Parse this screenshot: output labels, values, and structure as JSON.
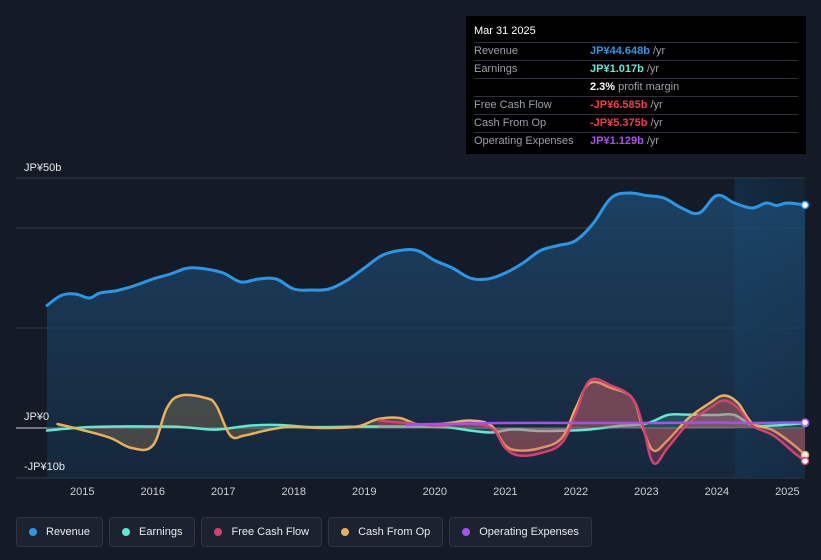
{
  "tooltip": {
    "date": "Mar 31 2025",
    "rows": [
      {
        "label": "Revenue",
        "value": "JP¥44.648b",
        "unit": "/yr",
        "color": "#2b96e6"
      },
      {
        "label": "Earnings",
        "value": "JP¥1.017b",
        "unit": "/yr",
        "color": "#5ee9d2"
      },
      {
        "label": "",
        "value": "2.3%",
        "unit": "profit margin",
        "color": "#ffffff"
      },
      {
        "label": "Free Cash Flow",
        "value": "-JP¥6.585b",
        "unit": "/yr",
        "color": "#ee3b4d"
      },
      {
        "label": "Cash From Op",
        "value": "-JP¥5.375b",
        "unit": "/yr",
        "color": "#ee3b4d"
      },
      {
        "label": "Operating Expenses",
        "value": "JP¥1.129b",
        "unit": "/yr",
        "color": "#a94ef2"
      }
    ]
  },
  "legend": [
    {
      "label": "Revenue",
      "color": "#2b96e6"
    },
    {
      "label": "Earnings",
      "color": "#5ee9d2"
    },
    {
      "label": "Free Cash Flow",
      "color": "#d3426f"
    },
    {
      "label": "Cash From Op",
      "color": "#e9b05c"
    },
    {
      "label": "Operating Expenses",
      "color": "#a94ef2"
    }
  ],
  "chart_data": {
    "type": "line",
    "ylim": [
      -10,
      50
    ],
    "y_tick_labels": [
      {
        "value": 50,
        "label": "JP¥50b"
      },
      {
        "value": 0,
        "label": "JP¥0"
      },
      {
        "value": -10,
        "label": "-JP¥10b"
      }
    ],
    "xlim": [
      2014.4,
      2025.3
    ],
    "x_ticks": [
      2015,
      2016,
      2017,
      2018,
      2019,
      2020,
      2021,
      2022,
      2023,
      2024,
      2025
    ],
    "x_tick_labels": [
      "2015",
      "2016",
      "2017",
      "2018",
      "2019",
      "2020",
      "2021",
      "2022",
      "2023",
      "2024",
      "2025"
    ],
    "highlight_from": 2024.25,
    "series": [
      {
        "name": "Revenue",
        "color": "#2b96e6",
        "fill": true,
        "x": [
          2014.5,
          2014.7,
          2014.9,
          2015.1,
          2015.25,
          2015.5,
          2015.75,
          2016.0,
          2016.25,
          2016.5,
          2016.75,
          2017.0,
          2017.25,
          2017.5,
          2017.75,
          2018.0,
          2018.25,
          2018.5,
          2018.75,
          2019.0,
          2019.25,
          2019.5,
          2019.75,
          2020.0,
          2020.25,
          2020.5,
          2020.75,
          2021.0,
          2021.25,
          2021.5,
          2021.75,
          2022.0,
          2022.25,
          2022.5,
          2022.75,
          2023.0,
          2023.25,
          2023.5,
          2023.75,
          2024.0,
          2024.25,
          2024.5,
          2024.7,
          2024.85,
          2025.0,
          2025.25
        ],
        "values": [
          24.5,
          26.5,
          26.8,
          26.0,
          27.0,
          27.5,
          28.5,
          29.8,
          30.8,
          32.0,
          31.8,
          31.0,
          29.2,
          29.8,
          29.8,
          27.8,
          27.6,
          27.8,
          29.5,
          32.0,
          34.5,
          35.5,
          35.5,
          33.5,
          32.0,
          30.0,
          29.8,
          31.0,
          33.0,
          35.5,
          36.5,
          37.5,
          41.0,
          46.0,
          47.0,
          46.5,
          46.0,
          44.0,
          43.0,
          46.5,
          45.0,
          44.0,
          45.0,
          44.5,
          45.0,
          44.6
        ]
      },
      {
        "name": "Earnings",
        "color": "#5ee9d2",
        "fill": true,
        "x": [
          2014.5,
          2015.0,
          2015.5,
          2016.0,
          2016.4,
          2016.8,
          2017.0,
          2017.4,
          2017.8,
          2018.2,
          2018.6,
          2019.0,
          2019.4,
          2019.8,
          2020.2,
          2020.5,
          2020.8,
          2021.1,
          2021.5,
          2021.9,
          2022.2,
          2022.6,
          2023.0,
          2023.3,
          2023.5,
          2023.8,
          2024.0,
          2024.25,
          2024.5,
          2024.8,
          2025.0,
          2025.25
        ],
        "values": [
          -0.5,
          0.1,
          0.3,
          0.3,
          0.2,
          -0.3,
          -0.2,
          0.5,
          0.6,
          0.2,
          0.2,
          0.3,
          0.3,
          0.3,
          0.1,
          -0.5,
          -0.9,
          -0.3,
          -0.6,
          -0.5,
          -0.3,
          0.4,
          0.9,
          2.6,
          2.7,
          2.6,
          2.6,
          2.6,
          0.6,
          0.5,
          0.7,
          1.0
        ]
      },
      {
        "name": "Cash From Op",
        "color": "#e9b05c",
        "fill": true,
        "x": [
          2014.65,
          2015.0,
          2015.4,
          2015.7,
          2016.0,
          2016.2,
          2016.4,
          2016.75,
          2016.9,
          2017.1,
          2017.3,
          2017.6,
          2017.9,
          2018.2,
          2018.5,
          2018.9,
          2019.2,
          2019.5,
          2019.8,
          2020.2,
          2020.5,
          2020.8,
          2021.0,
          2021.2,
          2021.5,
          2021.8,
          2022.0,
          2022.2,
          2022.5,
          2022.8,
          2022.95,
          2023.1,
          2023.3,
          2023.6,
          2023.9,
          2024.1,
          2024.3,
          2024.5,
          2024.8,
          2025.1,
          2025.25
        ],
        "values": [
          0.8,
          -0.4,
          -2.0,
          -4.0,
          -3.5,
          4.0,
          6.5,
          6.0,
          4.5,
          -1.5,
          -1.5,
          -0.5,
          0.2,
          0.1,
          0.0,
          0.3,
          1.8,
          2.0,
          0.6,
          1.0,
          1.5,
          0.5,
          -3.5,
          -4.5,
          -4.0,
          -2.0,
          4.0,
          9.0,
          8.0,
          6.0,
          0.0,
          -4.5,
          -2.5,
          2.0,
          5.0,
          6.5,
          5.0,
          1.0,
          -0.5,
          -3.5,
          -5.4
        ]
      },
      {
        "name": "Free Cash Flow",
        "color": "#d3426f",
        "fill": true,
        "x": [
          2019.2,
          2019.6,
          2020.0,
          2020.4,
          2020.8,
          2021.0,
          2021.2,
          2021.5,
          2021.8,
          2022.0,
          2022.2,
          2022.5,
          2022.8,
          2022.95,
          2023.1,
          2023.3,
          2023.6,
          2023.9,
          2024.1,
          2024.3,
          2024.5,
          2024.8,
          2025.1,
          2025.25
        ],
        "values": [
          1.5,
          1.0,
          0.5,
          0.8,
          0.0,
          -4.0,
          -5.5,
          -5.0,
          -3.0,
          3.0,
          9.5,
          8.5,
          6.0,
          0.5,
          -7.0,
          -4.0,
          1.0,
          4.0,
          5.5,
          4.0,
          0.5,
          -1.5,
          -5.0,
          -6.6
        ]
      },
      {
        "name": "Operating Expenses",
        "color": "#a94ef2",
        "fill": false,
        "x": [
          2019.6,
          2020.0,
          2021.0,
          2022.0,
          2023.0,
          2024.0,
          2024.5,
          2025.0,
          2025.25
        ],
        "values": [
          0.6,
          0.8,
          1.0,
          1.0,
          1.0,
          1.1,
          1.0,
          1.1,
          1.1
        ]
      }
    ]
  }
}
